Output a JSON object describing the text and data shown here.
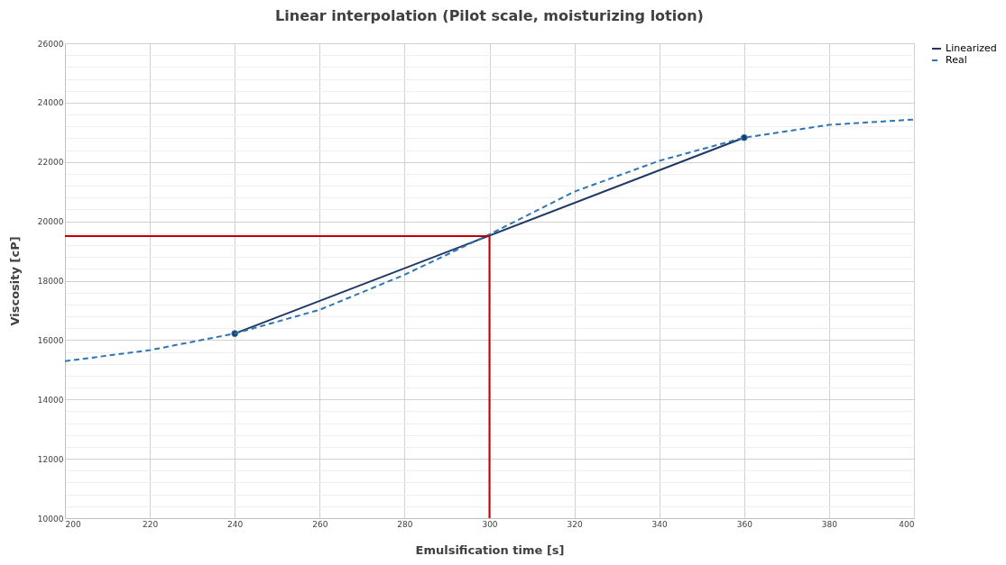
{
  "chart_data": {
    "type": "line",
    "title": "Linear interpolation (Pilot scale, moisturizing lotion)",
    "xlabel": "Emulsification time [s]",
    "ylabel": "Viscosity [cP]",
    "xlim": [
      200,
      400
    ],
    "xticks": [
      200,
      220,
      240,
      260,
      280,
      300,
      320,
      340,
      360,
      380,
      400
    ],
    "ylim": [
      10000,
      26000
    ],
    "yticks": [
      10000,
      {
        "value": 10400,
        "label": null
      },
      {
        "value": 10800,
        "label": null
      },
      {
        "value": 11200,
        "label": null
      },
      {
        "value": 11600,
        "label": null
      },
      12000,
      {
        "value": 12400,
        "label": null
      },
      {
        "value": 12800,
        "label": null
      },
      {
        "value": 13200,
        "label": null
      },
      {
        "value": 13600,
        "label": null
      },
      14000,
      {
        "value": 14400,
        "label": null
      },
      {
        "value": 14800,
        "label": null
      },
      {
        "value": 15200,
        "label": null
      },
      {
        "value": 15600,
        "label": null
      },
      16000,
      {
        "value": 16400,
        "label": null
      },
      {
        "value": 16800,
        "label": null
      },
      {
        "value": 17200,
        "label": null
      },
      {
        "value": 17600,
        "label": null
      },
      18000,
      {
        "value": 18400,
        "label": null
      },
      {
        "value": 18800,
        "label": null
      },
      {
        "value": 19200,
        "label": null
      },
      {
        "value": 19600,
        "label": null
      },
      20000,
      {
        "value": 20400,
        "label": null
      },
      {
        "value": 20800,
        "label": null
      },
      {
        "value": 21200,
        "label": null
      },
      {
        "value": 21600,
        "label": null
      },
      22000,
      {
        "value": 22400,
        "label": null
      },
      {
        "value": 22800,
        "label": null
      },
      {
        "value": 23200,
        "label": null
      },
      {
        "value": 23600,
        "label": null
      },
      24000,
      {
        "value": 24400,
        "label": null
      },
      {
        "value": 24800,
        "label": null
      },
      {
        "value": 25200,
        "label": null
      },
      {
        "value": 25600,
        "label": null
      },
      26000
    ],
    "grid": true,
    "legend": "top right",
    "series": [
      {
        "name": "Linearized",
        "color": "#1f3864",
        "x": [
          240,
          360
        ],
        "values": [
          16220,
          22820
        ],
        "marker": "circle",
        "line_style": "solid"
      },
      {
        "name": "Real",
        "color": "#2e75b6",
        "x": [
          200,
          220,
          240,
          260,
          280,
          300,
          320,
          340,
          360,
          380,
          400
        ],
        "values": [
          15290,
          15660,
          16220,
          17020,
          18200,
          19560,
          21000,
          22040,
          22820,
          23250,
          23430
        ],
        "marker": "none",
        "line_style": "dashed"
      },
      {
        "color": "#c00000",
        "x": [
          300,
          200
        ],
        "values": [
          19500,
          19500
        ],
        "marker": "none",
        "line_style": "solid"
      },
      {
        "color": "#c00000",
        "x": [
          300,
          300
        ],
        "values": [
          10000,
          19500
        ],
        "marker": "none",
        "line_style": "solid"
      }
    ]
  }
}
